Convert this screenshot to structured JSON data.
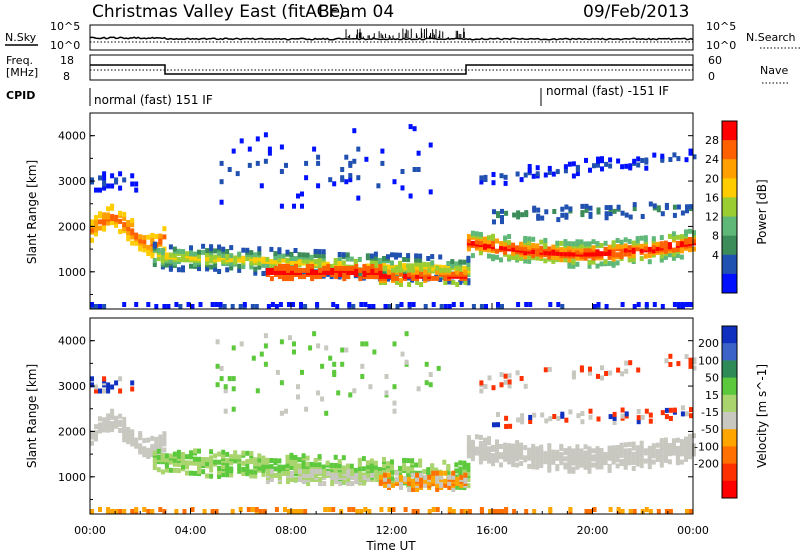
{
  "header": {
    "title": "Christmas Valley East (fitACF)",
    "beam": "Beam 04",
    "date": "09/Feb/2013"
  },
  "noise_panel": {
    "left_label": "N.Sky",
    "right_label": "N.Search",
    "ticks_left": [
      "10^5",
      "10^0"
    ],
    "ticks_right": [
      "10^5",
      "10^0"
    ]
  },
  "freq_panel": {
    "left_label_line1": "Freq.",
    "left_label_line2": "[MHz]",
    "ticks_left": [
      "18",
      "8"
    ],
    "right_label": "Nave",
    "ticks_right": [
      "60",
      "0"
    ]
  },
  "cpid_panel": {
    "label": "CPID",
    "modes": [
      "normal (fast) 151 IF",
      "normal (fast) -151 IF"
    ]
  },
  "chart_data": [
    {
      "type": "heatmap",
      "name": "power",
      "ylabel": "Slant Range [km]",
      "xlabel": "Time UT",
      "x_ticks": [
        "00:00",
        "04:00",
        "08:00",
        "12:00",
        "16:00",
        "20:00",
        "00:00"
      ],
      "y_ticks": [
        "1000",
        "2000",
        "3000",
        "4000"
      ],
      "ylim": [
        180,
        4500
      ],
      "colorbar_label": "Power [dB]",
      "colorbar_ticks": [
        "28",
        "24",
        "20",
        "16",
        "12",
        "8",
        "4"
      ],
      "colorbar_colors": [
        "#ff0000",
        "#ff6000",
        "#ffa000",
        "#ffcc00",
        "#9acd32",
        "#5fb878",
        "#3c8c5a",
        "#2050b0",
        "#0010ff"
      ]
    },
    {
      "type": "heatmap",
      "name": "velocity",
      "ylabel": "Slant Range [km]",
      "xlabel": "Time UT",
      "x_ticks": [
        "00:00",
        "04:00",
        "08:00",
        "12:00",
        "16:00",
        "20:00",
        "00:00"
      ],
      "y_ticks": [
        "1000",
        "2000",
        "3000",
        "4000"
      ],
      "ylim": [
        180,
        4500
      ],
      "colorbar_label": "Velocity [m s^-1]",
      "colorbar_ticks": [
        "200",
        "100",
        "50",
        "15",
        "-15",
        "-50",
        "-100",
        "-200"
      ],
      "colorbar_colors": [
        "#1030c0",
        "#3c64c8",
        "#2e8b57",
        "#5cc83c",
        "#aad46e",
        "#c8c8c0",
        "#ffa500",
        "#ff7000",
        "#ff3000",
        "#ff0000"
      ]
    }
  ],
  "x_axis_title": "Time UT"
}
